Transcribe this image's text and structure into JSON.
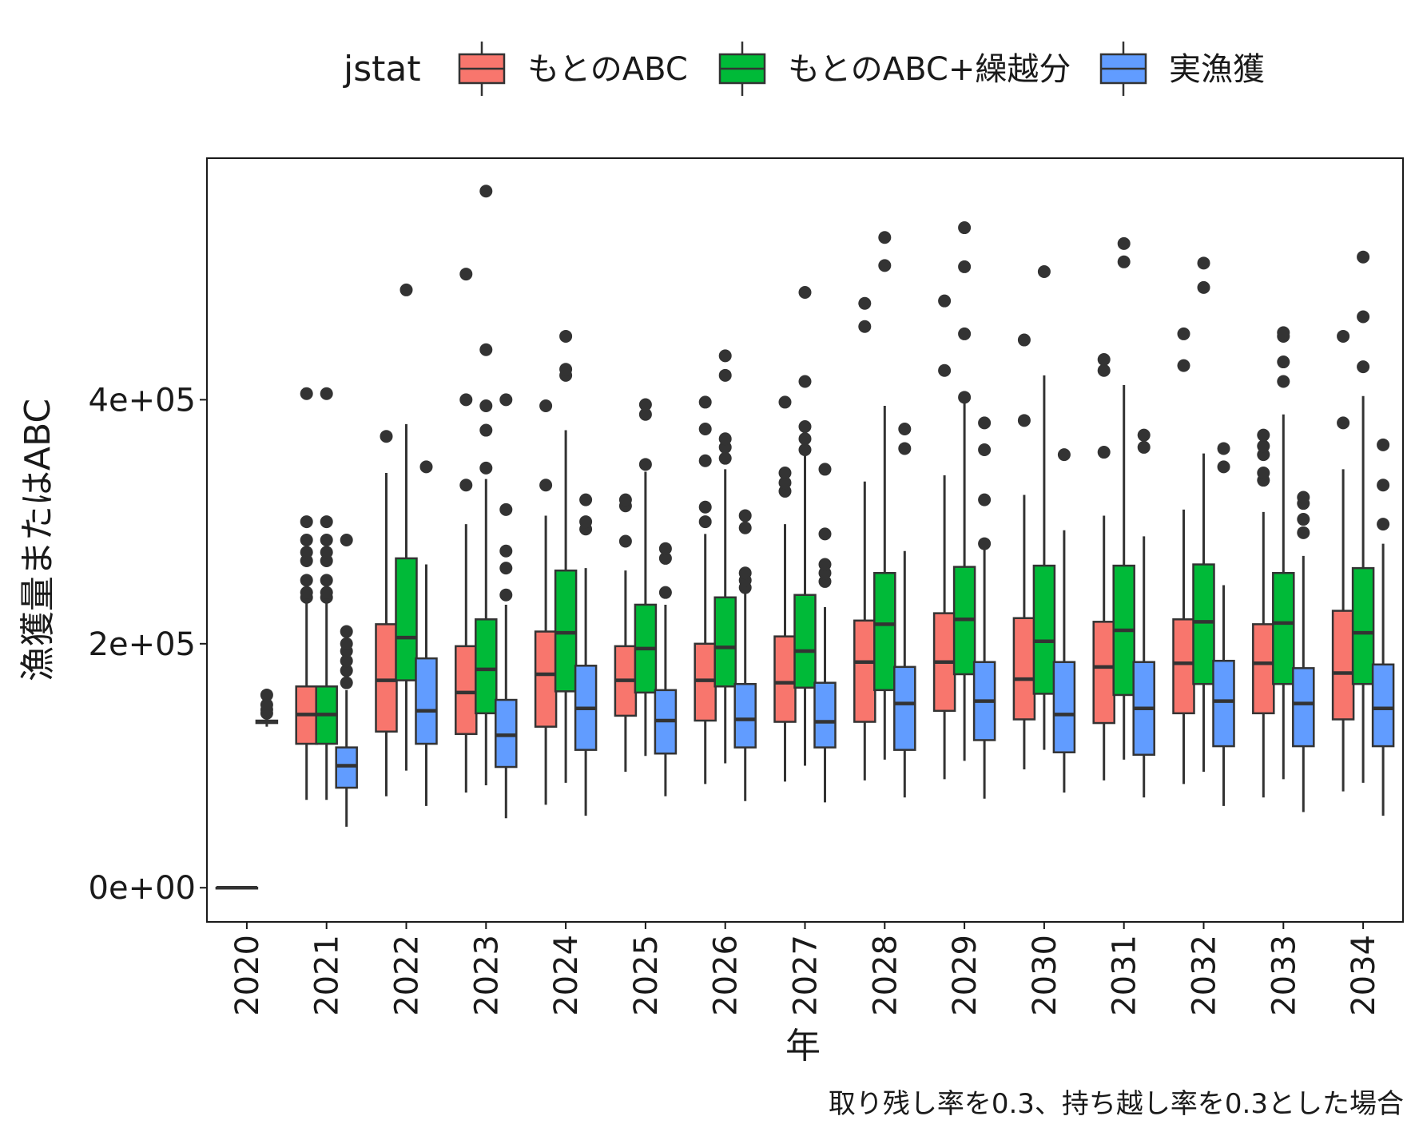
{
  "chart_data": {
    "type": "boxplot",
    "xlabel": "年",
    "ylabel": "漁獲量またはABC",
    "caption": "取り残し率を0.3、持ち越し率を0.3とした場合",
    "legend": {
      "title": "jstat",
      "position": "top",
      "entries": [
        {
          "name": "もとのABC",
          "color": "#F8766D"
        },
        {
          "name": "もとのABC+繰越分",
          "color": "#00BA38"
        },
        {
          "name": "実漁獲",
          "color": "#619CFF"
        }
      ]
    },
    "ylim": [
      -28000,
      598000
    ],
    "yticks": [
      0,
      200000,
      400000
    ],
    "ytick_labels": [
      "0e+00",
      "2e+05",
      "4e+05"
    ],
    "categories": [
      "2020",
      "2021",
      "2022",
      "2023",
      "2024",
      "2025",
      "2026",
      "2027",
      "2028",
      "2029",
      "2030",
      "2031",
      "2032",
      "2033",
      "2034"
    ],
    "series": [
      {
        "name": "もとのABC",
        "color": "#F8766D",
        "boxes": [
          {
            "x": "2020",
            "min": 0,
            "q1": 0,
            "median": 0,
            "q3": 0,
            "max": 0,
            "outliers": []
          },
          {
            "x": "2021",
            "min": 72000,
            "q1": 118000,
            "median": 142000,
            "q3": 165000,
            "max": 235000,
            "outliers": [
              238000,
              242000,
              252000,
              268000,
              275000,
              285000,
              300000,
              405000
            ]
          },
          {
            "x": "2022",
            "min": 75000,
            "q1": 128000,
            "median": 170000,
            "q3": 216000,
            "max": 340000,
            "outliers": [
              370000
            ]
          },
          {
            "x": "2023",
            "min": 78000,
            "q1": 126000,
            "median": 160000,
            "q3": 198000,
            "max": 298000,
            "outliers": [
              330000,
              400000,
              503000
            ]
          },
          {
            "x": "2024",
            "min": 68000,
            "q1": 132000,
            "median": 175000,
            "q3": 210000,
            "max": 305000,
            "outliers": [
              330000,
              395000
            ]
          },
          {
            "x": "2025",
            "min": 95000,
            "q1": 141000,
            "median": 170000,
            "q3": 198000,
            "max": 260000,
            "outliers": [
              284000,
              313000,
              318000
            ]
          },
          {
            "x": "2026",
            "min": 85000,
            "q1": 137000,
            "median": 170000,
            "q3": 200000,
            "max": 290000,
            "outliers": [
              300000,
              312000,
              350000,
              376000,
              398000
            ]
          },
          {
            "x": "2027",
            "min": 87000,
            "q1": 136000,
            "median": 168000,
            "q3": 206000,
            "max": 298000,
            "outliers": [
              325000,
              332000,
              340000,
              398000
            ]
          },
          {
            "x": "2028",
            "min": 88000,
            "q1": 136000,
            "median": 185000,
            "q3": 219000,
            "max": 333000,
            "outliers": [
              460000,
              479000
            ]
          },
          {
            "x": "2029",
            "min": 89000,
            "q1": 145000,
            "median": 185000,
            "q3": 225000,
            "max": 338000,
            "outliers": [
              424000,
              481000
            ]
          },
          {
            "x": "2030",
            "min": 97000,
            "q1": 138000,
            "median": 171000,
            "q3": 221000,
            "max": 322000,
            "outliers": [
              383000,
              449000
            ]
          },
          {
            "x": "2031",
            "min": 88000,
            "q1": 135000,
            "median": 181000,
            "q3": 218000,
            "max": 305000,
            "outliers": [
              357000,
              424000,
              433000
            ]
          },
          {
            "x": "2032",
            "min": 85000,
            "q1": 143000,
            "median": 184000,
            "q3": 220000,
            "max": 310000,
            "outliers": [
              428000,
              454000
            ]
          },
          {
            "x": "2033",
            "min": 74000,
            "q1": 143000,
            "median": 184000,
            "q3": 216000,
            "max": 308000,
            "outliers": [
              334000,
              340000,
              355000,
              362000,
              371000
            ]
          },
          {
            "x": "2034",
            "min": 79000,
            "q1": 138000,
            "median": 176000,
            "q3": 227000,
            "max": 343000,
            "outliers": [
              381000,
              452000
            ]
          }
        ]
      },
      {
        "name": "もとのABC+繰越分",
        "color": "#00BA38",
        "boxes": [
          {
            "x": "2020",
            "min": 0,
            "q1": 0,
            "median": 0,
            "q3": 0,
            "max": 0,
            "outliers": []
          },
          {
            "x": "2021",
            "min": 72000,
            "q1": 118000,
            "median": 142000,
            "q3": 165000,
            "max": 235000,
            "outliers": [
              238000,
              242000,
              252000,
              268000,
              275000,
              285000,
              300000,
              405000
            ]
          },
          {
            "x": "2022",
            "min": 96000,
            "q1": 170000,
            "median": 205000,
            "q3": 270000,
            "max": 380000,
            "outliers": [
              490000
            ]
          },
          {
            "x": "2023",
            "min": 84000,
            "q1": 143000,
            "median": 179000,
            "q3": 220000,
            "max": 335000,
            "outliers": [
              344000,
              375000,
              395000,
              441000,
              571000
            ]
          },
          {
            "x": "2024",
            "min": 86000,
            "q1": 161000,
            "median": 209000,
            "q3": 260000,
            "max": 375000,
            "outliers": [
              420000,
              425000,
              452000
            ]
          },
          {
            "x": "2025",
            "min": 108000,
            "q1": 160000,
            "median": 196000,
            "q3": 232000,
            "max": 341000,
            "outliers": [
              347000,
              388000,
              396000
            ]
          },
          {
            "x": "2026",
            "min": 102000,
            "q1": 165000,
            "median": 197000,
            "q3": 238000,
            "max": 343000,
            "outliers": [
              352000,
              361000,
              368000,
              420000,
              436000
            ]
          },
          {
            "x": "2027",
            "min": 100000,
            "q1": 164000,
            "median": 194000,
            "q3": 240000,
            "max": 355000,
            "outliers": [
              359000,
              368000,
              378000,
              415000,
              488000
            ]
          },
          {
            "x": "2028",
            "min": 105000,
            "q1": 162000,
            "median": 216000,
            "q3": 258000,
            "max": 395000,
            "outliers": [
              510000,
              533000
            ]
          },
          {
            "x": "2029",
            "min": 104000,
            "q1": 175000,
            "median": 220000,
            "q3": 263000,
            "max": 400000,
            "outliers": [
              402000,
              454000,
              509000,
              541000
            ]
          },
          {
            "x": "2030",
            "min": 113000,
            "q1": 159000,
            "median": 202000,
            "q3": 264000,
            "max": 420000,
            "outliers": [
              505000
            ]
          },
          {
            "x": "2031",
            "min": 105000,
            "q1": 158000,
            "median": 211000,
            "q3": 264000,
            "max": 412000,
            "outliers": [
              513000,
              528000
            ]
          },
          {
            "x": "2032",
            "min": 95000,
            "q1": 167000,
            "median": 218000,
            "q3": 265000,
            "max": 356000,
            "outliers": [
              492000,
              512000
            ]
          },
          {
            "x": "2033",
            "min": 89000,
            "q1": 167000,
            "median": 217000,
            "q3": 258000,
            "max": 388000,
            "outliers": [
              415000,
              431000,
              452000,
              455000
            ]
          },
          {
            "x": "2034",
            "min": 86000,
            "q1": 167000,
            "median": 209000,
            "q3": 262000,
            "max": 403000,
            "outliers": [
              427000,
              468000,
              517000
            ]
          }
        ]
      },
      {
        "name": "実漁獲",
        "color": "#619CFF",
        "boxes": [
          {
            "x": "2020",
            "min": 132000,
            "q1": 135000,
            "median": 136000,
            "q3": 137000,
            "max": 140000,
            "outliers": [
              143000,
              146000,
              150000,
              158000
            ]
          },
          {
            "x": "2021",
            "min": 50000,
            "q1": 82000,
            "median": 100000,
            "q3": 115000,
            "max": 162000,
            "outliers": [
              168000,
              178000,
              186000,
              194000,
              200000,
              210000,
              285000
            ]
          },
          {
            "x": "2022",
            "min": 67000,
            "q1": 118000,
            "median": 145000,
            "q3": 188000,
            "max": 265000,
            "outliers": [
              345000
            ]
          },
          {
            "x": "2023",
            "min": 57000,
            "q1": 99000,
            "median": 125000,
            "q3": 154000,
            "max": 232000,
            "outliers": [
              240000,
              262000,
              276000,
              310000,
              400000
            ]
          },
          {
            "x": "2024",
            "min": 59000,
            "q1": 113000,
            "median": 147000,
            "q3": 182000,
            "max": 262000,
            "outliers": [
              294000,
              300000,
              318000
            ]
          },
          {
            "x": "2025",
            "min": 75000,
            "q1": 110000,
            "median": 137000,
            "q3": 162000,
            "max": 232000,
            "outliers": [
              242000,
              270000,
              278000
            ]
          },
          {
            "x": "2026",
            "min": 71000,
            "q1": 115000,
            "median": 138000,
            "q3": 167000,
            "max": 242000,
            "outliers": [
              246000,
              252000,
              258000,
              295000,
              305000
            ]
          },
          {
            "x": "2027",
            "min": 70000,
            "q1": 115000,
            "median": 136000,
            "q3": 168000,
            "max": 230000,
            "outliers": [
              251000,
              258000,
              265000,
              290000,
              343000
            ]
          },
          {
            "x": "2028",
            "min": 74000,
            "q1": 113000,
            "median": 151000,
            "q3": 181000,
            "max": 276000,
            "outliers": [
              360000,
              376000
            ]
          },
          {
            "x": "2029",
            "min": 73000,
            "q1": 121000,
            "median": 153000,
            "q3": 185000,
            "max": 277000,
            "outliers": [
              282000,
              318000,
              359000,
              381000
            ]
          },
          {
            "x": "2030",
            "min": 78000,
            "q1": 111000,
            "median": 142000,
            "q3": 185000,
            "max": 293000,
            "outliers": [
              355000
            ]
          },
          {
            "x": "2031",
            "min": 74000,
            "q1": 109000,
            "median": 147000,
            "q3": 185000,
            "max": 288000,
            "outliers": [
              361000,
              371000
            ]
          },
          {
            "x": "2032",
            "min": 67000,
            "q1": 116000,
            "median": 153000,
            "q3": 186000,
            "max": 248000,
            "outliers": [
              345000,
              360000
            ]
          },
          {
            "x": "2033",
            "min": 62000,
            "q1": 116000,
            "median": 151000,
            "q3": 180000,
            "max": 272000,
            "outliers": [
              291000,
              302000,
              315000,
              320000
            ]
          },
          {
            "x": "2034",
            "min": 59000,
            "q1": 116000,
            "median": 147000,
            "q3": 183000,
            "max": 282000,
            "outliers": [
              298000,
              330000,
              363000
            ]
          }
        ]
      }
    ]
  }
}
